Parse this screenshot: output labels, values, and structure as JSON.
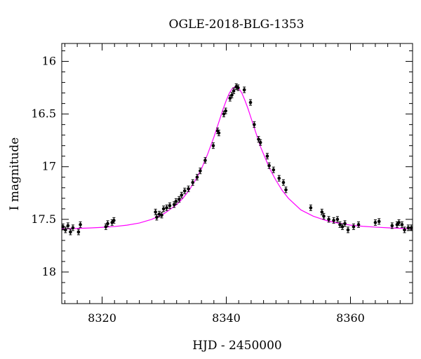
{
  "chart_data": {
    "type": "scatter",
    "title": "OGLE-2018-BLG-1353",
    "xlabel": "HJD - 2450000",
    "ylabel": "I magnitude",
    "xlim": [
      8313.5,
      8370
    ],
    "ylim": [
      18.3,
      15.83
    ],
    "y_inverted": true,
    "x_ticks": [
      8320,
      8340,
      8360
    ],
    "y_ticks": [
      16,
      16.5,
      17,
      17.5,
      18
    ],
    "grid": false,
    "colors": {
      "points": "#000000",
      "model": "#ff00ff",
      "axes": "#000000"
    },
    "model": {
      "name": "",
      "x": [
        8313.5,
        8316,
        8318,
        8320,
        8322,
        8324,
        8326,
        8328,
        8330,
        8332,
        8333,
        8334,
        8335,
        8336,
        8337,
        8338,
        8338.5,
        8339,
        8339.5,
        8340,
        8340.5,
        8341,
        8341.5,
        8342,
        8342.5,
        8343,
        8343.5,
        8344,
        8344.5,
        8345,
        8345.5,
        8346,
        8347,
        8348,
        8349,
        8350,
        8352,
        8354,
        8356,
        8358,
        8360,
        8362,
        8364,
        8366,
        8368,
        8370
      ],
      "y": [
        17.59,
        17.586,
        17.582,
        17.576,
        17.568,
        17.555,
        17.535,
        17.5,
        17.445,
        17.36,
        17.3,
        17.225,
        17.13,
        17.02,
        16.88,
        16.72,
        16.63,
        16.54,
        16.45,
        16.37,
        16.3,
        16.255,
        16.24,
        16.255,
        16.3,
        16.37,
        16.45,
        16.54,
        16.63,
        16.72,
        16.81,
        16.88,
        17.02,
        17.13,
        17.225,
        17.3,
        17.41,
        17.47,
        17.51,
        17.535,
        17.555,
        17.566,
        17.574,
        17.58,
        17.585,
        17.589
      ]
    },
    "series": [
      {
        "name": "",
        "x": [
          8313.7,
          8314.1,
          8314.5,
          8314.9,
          8315.3,
          8316.2,
          8316.5,
          8320.6,
          8320.9,
          8321.6,
          8321.9,
          8328.6,
          8328.8,
          8329.2,
          8329.6,
          8329.9,
          8330.4,
          8330.9,
          8331.6,
          8331.9,
          8332.4,
          8332.8,
          8333.3,
          8333.9,
          8334.6,
          8335.3,
          8335.8,
          8336.6,
          8337.9,
          8338.6,
          8338.8,
          8339.6,
          8339.9,
          8340.6,
          8340.9,
          8341.2,
          8341.6,
          8341.9,
          8342.9,
          8343.9,
          8344.5,
          8345.2,
          8345.5,
          8346.6,
          8346.9,
          8347.6,
          8348.5,
          8349.2,
          8349.6,
          8353.6,
          8355.4,
          8355.7,
          8356.5,
          8357.3,
          8357.9,
          8358.3,
          8358.7,
          8359.1,
          8359.6,
          8360.5,
          8361.3,
          8364.0,
          8364.6,
          8366.7,
          8367.5,
          8367.8,
          8368.3,
          8368.7,
          8369.3,
          8369.8
        ],
        "y": [
          17.57,
          17.6,
          17.56,
          17.62,
          17.58,
          17.62,
          17.55,
          17.57,
          17.54,
          17.53,
          17.51,
          17.43,
          17.48,
          17.45,
          17.46,
          17.4,
          17.39,
          17.37,
          17.36,
          17.33,
          17.31,
          17.27,
          17.23,
          17.21,
          17.15,
          17.1,
          17.04,
          16.94,
          16.8,
          16.66,
          16.68,
          16.5,
          16.47,
          16.35,
          16.32,
          16.28,
          16.24,
          16.25,
          16.27,
          16.39,
          16.6,
          16.74,
          16.77,
          16.9,
          16.99,
          17.03,
          17.11,
          17.15,
          17.22,
          17.39,
          17.43,
          17.47,
          17.5,
          17.51,
          17.5,
          17.55,
          17.57,
          17.54,
          17.6,
          17.57,
          17.55,
          17.53,
          17.52,
          17.56,
          17.55,
          17.53,
          17.55,
          17.6,
          17.58,
          17.58
        ]
      }
    ]
  }
}
